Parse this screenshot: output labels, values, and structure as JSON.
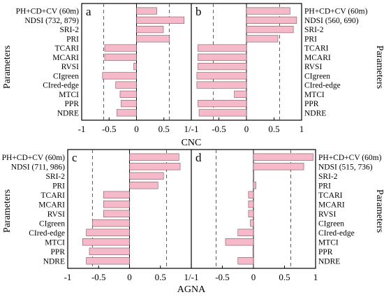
{
  "bar_color": "#f6b9c9",
  "bar_edge": "#7a5a63",
  "threshold_lines": [
    -0.6,
    0.6
  ],
  "xlabel_top": "CNC",
  "xlabel_bottom": "AGNA",
  "ylabel": "Parameters",
  "xtick_labels": [
    "-1",
    "-0.5",
    "0",
    "0.5",
    "1/-1",
    "-0.5",
    "0",
    "0.5",
    "1"
  ],
  "chart_data": [
    {
      "type": "bar",
      "panel": "a",
      "orientation": "horizontal",
      "categories": [
        "PH+CD+CV (60m)",
        "NDSI (732, 879)",
        "SRI-2",
        "PRI",
        "TCARI",
        "MCARI",
        "RVSI",
        "CIgreen",
        "CIred-edge",
        "MTCI",
        "PPR",
        "NDRE"
      ],
      "values": [
        0.37,
        0.87,
        0.49,
        0.6,
        -0.58,
        -0.58,
        -0.05,
        -0.62,
        -0.38,
        -0.3,
        -0.28,
        -0.36
      ],
      "xlim": [
        -1,
        1
      ],
      "xlabel": "CNC",
      "ylabel": "Parameters"
    },
    {
      "type": "bar",
      "panel": "b",
      "orientation": "horizontal",
      "categories": [
        "PH+CD+CV (60m)",
        "NDSI (560, 690)",
        "SRI-2",
        "PRI",
        "TCARI",
        "MCARI",
        "RVSI",
        "CIgreen",
        "CIred-edge",
        "MTCI",
        "PPR",
        "NDRE"
      ],
      "values": [
        0.79,
        0.91,
        0.85,
        0.57,
        -0.88,
        -0.88,
        -0.88,
        -0.9,
        -0.9,
        -0.22,
        -0.88,
        -0.86
      ],
      "xlim": [
        -1,
        1
      ],
      "xlabel": "CNC",
      "ylabel": "Parameters"
    },
    {
      "type": "bar",
      "panel": "c",
      "orientation": "horizontal",
      "categories": [
        "PH+CD+CV (60m)",
        "NDSI (711, 986)",
        "SRI-2",
        "PRI",
        "TCARI",
        "MCARI",
        "RVSI",
        "CIgreen",
        "CIred-edge",
        "MTCI",
        "PPR",
        "NDRE"
      ],
      "values": [
        0.8,
        0.82,
        0.55,
        0.46,
        -0.42,
        -0.42,
        -0.42,
        -0.6,
        -0.7,
        -0.76,
        -0.65,
        -0.7
      ],
      "xlim": [
        -1,
        1
      ],
      "xlabel": "AGNA",
      "ylabel": "Parameters"
    },
    {
      "type": "bar",
      "panel": "d",
      "orientation": "horizontal",
      "categories": [
        "PH+CD+CV (60m)",
        "NDSI (515, 736)",
        "SRI-2",
        "PRI",
        "TCARI",
        "MCARI",
        "RVSI",
        "CIgreen",
        "CIred-edge",
        "MTCI",
        "PPR",
        "NDRE"
      ],
      "values": [
        0.96,
        0.81,
        0.0,
        0.04,
        -0.08,
        -0.08,
        -0.08,
        -0.05,
        -0.25,
        -0.45,
        -0.01,
        -0.25
      ],
      "xlim": [
        -1,
        1
      ],
      "xlabel": "AGNA",
      "ylabel": "Parameters"
    }
  ]
}
